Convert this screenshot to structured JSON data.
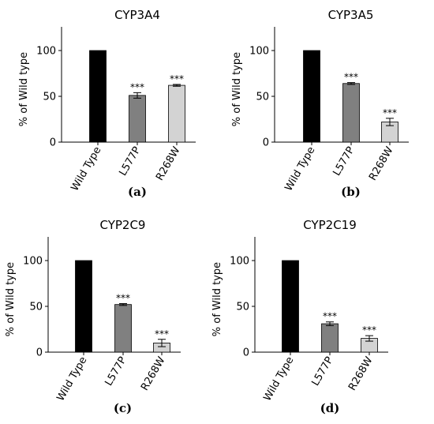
{
  "chart_data": [
    {
      "type": "bar",
      "title": "CYP3A4",
      "panel_label": "(a)",
      "ylabel": "% of Wild type",
      "categories": [
        "Wild Type",
        "L577P",
        "R268W"
      ],
      "values": [
        100,
        51,
        62
      ],
      "errors": [
        0,
        3,
        1
      ],
      "significance": [
        "",
        "***",
        "***"
      ],
      "bar_colors": [
        "#000000",
        "#808080",
        "#d3d3d3"
      ],
      "yticks": [
        "0",
        "50",
        "100"
      ],
      "ylim": [
        0,
        130
      ]
    },
    {
      "type": "bar",
      "title": "CYP3A5",
      "panel_label": "(b)",
      "ylabel": "% of Wild type",
      "categories": [
        "Wild Type",
        "L577P",
        "R268W"
      ],
      "values": [
        100,
        64,
        22
      ],
      "errors": [
        0,
        1,
        4
      ],
      "significance": [
        "",
        "***",
        "***"
      ],
      "bar_colors": [
        "#000000",
        "#808080",
        "#d3d3d3"
      ],
      "yticks": [
        "0",
        "50",
        "100"
      ],
      "ylim": [
        0,
        130
      ]
    },
    {
      "type": "bar",
      "title": "CYP2C9",
      "panel_label": "(c)",
      "ylabel": "% of Wild type",
      "categories": [
        "Wild Type",
        "L577P",
        "R268W"
      ],
      "values": [
        100,
        52,
        10
      ],
      "errors": [
        0,
        1,
        4
      ],
      "significance": [
        "",
        "***",
        "***"
      ],
      "bar_colors": [
        "#000000",
        "#808080",
        "#d3d3d3"
      ],
      "yticks": [
        "0",
        "50",
        "100"
      ],
      "ylim": [
        0,
        130
      ]
    },
    {
      "type": "bar",
      "title": "CYP2C19",
      "panel_label": "(d)",
      "ylabel": "% of Wild type",
      "categories": [
        "Wild Type",
        "L577P",
        "R268W"
      ],
      "values": [
        100,
        31,
        15
      ],
      "errors": [
        0,
        2,
        3
      ],
      "significance": [
        "",
        "***",
        "***"
      ],
      "bar_colors": [
        "#000000",
        "#808080",
        "#d3d3d3"
      ],
      "yticks": [
        "0",
        "50",
        "100"
      ],
      "ylim": [
        0,
        130
      ]
    }
  ]
}
